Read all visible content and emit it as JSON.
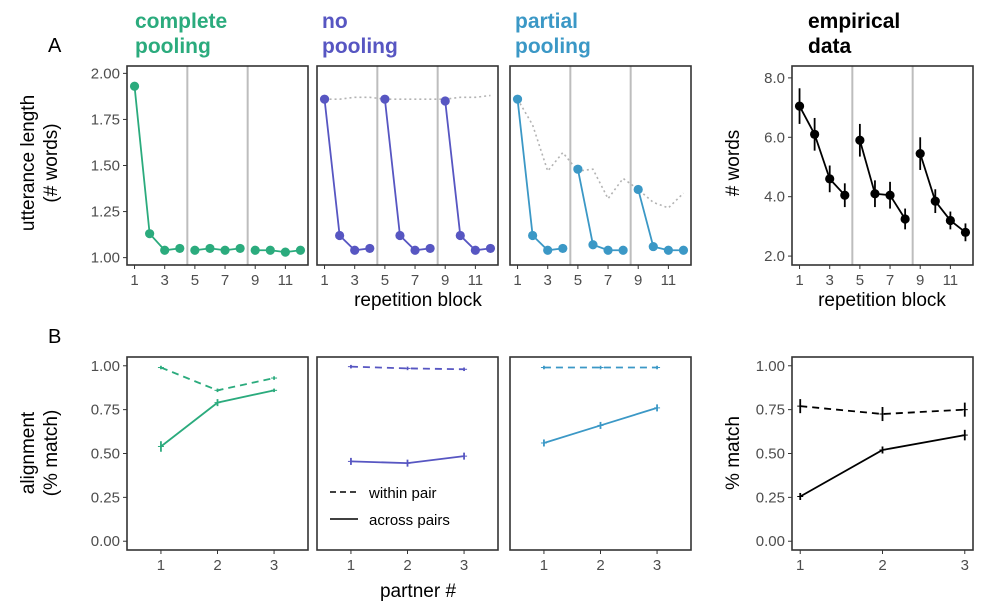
{
  "panel_labels": {
    "A": "A",
    "B": "B"
  },
  "colors": {
    "complete": "#2bab7d",
    "none": "#5756c2",
    "partial": "#3b98c6",
    "empirical": "#000000",
    "vline": "#bdbdbd",
    "dotted": "#b3b3b3"
  },
  "titles": [
    {
      "line1": "complete",
      "line2": "pooling"
    },
    {
      "line1": "no",
      "line2": "pooling"
    },
    {
      "line1": "partial",
      "line2": "pooling"
    },
    {
      "line1": "empirical",
      "line2": "data"
    }
  ],
  "axis_labels": {
    "row_a_model_ylabel_1": "utterance length",
    "row_a_model_ylabel_2": "(# words)",
    "row_a_emp_ylabel": "# words",
    "row_a_xlabel_model": "repetition block",
    "row_a_xlabel_emp": "repetition block",
    "row_b_model_ylabel_1": "alignment",
    "row_b_model_ylabel_2": "(% match)",
    "row_b_emp_ylabel": "% match",
    "row_b_xlabel_model": "partner #",
    "row_b_xlabel_emp": "partner #"
  },
  "legend": {
    "within": "within pair",
    "across": "across pairs"
  },
  "chart_data": [
    {
      "id": "A_complete",
      "type": "line",
      "title": "complete pooling",
      "x": [
        1,
        2,
        3,
        4,
        5,
        6,
        7,
        8,
        9,
        10,
        11,
        12
      ],
      "xticks": [
        "1",
        "3",
        "5",
        "7",
        "9",
        "11"
      ],
      "yticks": [
        "1.00",
        "1.25",
        "1.50",
        "1.75",
        "2.00"
      ],
      "ylim": [
        0.96,
        2.04
      ],
      "xlim": [
        0.5,
        12.5
      ],
      "partner_boundaries": [
        4.5,
        8.5
      ],
      "ylabel": "utterance length (# words)",
      "xlabel": "repetition block",
      "series": [
        {
          "values": [
            1.93,
            1.13,
            1.04,
            1.05,
            1.04,
            1.05,
            1.04,
            1.05,
            1.04,
            1.04,
            1.03,
            1.04
          ]
        }
      ]
    },
    {
      "id": "A_none",
      "type": "line",
      "title": "no pooling",
      "x": [
        1,
        2,
        3,
        4,
        5,
        6,
        7,
        8,
        9,
        10,
        11,
        12
      ],
      "xticks": [
        "1",
        "3",
        "5",
        "7",
        "9",
        "11"
      ],
      "yticks": [
        "1.00",
        "1.25",
        "1.50",
        "1.75",
        "2.00"
      ],
      "ylim": [
        0.96,
        2.04
      ],
      "xlim": [
        0.5,
        12.5
      ],
      "partner_boundaries": [
        4.5,
        8.5
      ],
      "xlabel": "repetition block",
      "series": [
        {
          "values": [
            1.86,
            1.12,
            1.04,
            1.05,
            1.86,
            1.12,
            1.04,
            1.05,
            1.85,
            1.12,
            1.04,
            1.05
          ]
        }
      ],
      "reference": [
        1.86,
        1.86,
        1.87,
        1.87,
        1.86,
        1.86,
        1.86,
        1.86,
        1.86,
        1.87,
        1.87,
        1.88
      ]
    },
    {
      "id": "A_partial",
      "type": "line",
      "title": "partial pooling",
      "x": [
        1,
        2,
        3,
        4,
        5,
        6,
        7,
        8,
        9,
        10,
        11,
        12
      ],
      "xticks": [
        "1",
        "3",
        "5",
        "7",
        "9",
        "11"
      ],
      "yticks": [
        "1.00",
        "1.25",
        "1.50",
        "1.75",
        "2.00"
      ],
      "ylim": [
        0.96,
        2.04
      ],
      "xlim": [
        0.5,
        12.5
      ],
      "partner_boundaries": [
        4.5,
        8.5
      ],
      "xlabel": "repetition block",
      "series": [
        {
          "values": [
            1.86,
            1.12,
            1.04,
            1.05,
            1.48,
            1.07,
            1.04,
            1.04,
            1.37,
            1.06,
            1.04,
            1.04
          ]
        }
      ],
      "reference": [
        1.86,
        1.72,
        1.47,
        1.57,
        1.47,
        1.48,
        1.32,
        1.43,
        1.37,
        1.3,
        1.27,
        1.35
      ]
    },
    {
      "id": "A_empirical",
      "type": "line",
      "title": "empirical data",
      "x": [
        1,
        2,
        3,
        4,
        5,
        6,
        7,
        8,
        9,
        10,
        11,
        12
      ],
      "xticks": [
        "1",
        "3",
        "5",
        "7",
        "9",
        "11"
      ],
      "yticks": [
        "2.0",
        "4.0",
        "6.0",
        "8.0"
      ],
      "ylim": [
        1.7,
        8.4
      ],
      "xlim": [
        0.5,
        12.5
      ],
      "partner_boundaries": [
        4.5,
        8.5
      ],
      "ylabel": "# words",
      "xlabel": "repetition block",
      "series": [
        {
          "values": [
            7.05,
            6.1,
            4.6,
            4.05,
            5.9,
            4.1,
            4.05,
            3.25,
            5.45,
            3.85,
            3.2,
            2.8
          ],
          "error": [
            0.6,
            0.55,
            0.45,
            0.4,
            0.55,
            0.45,
            0.45,
            0.35,
            0.55,
            0.4,
            0.3,
            0.3
          ]
        }
      ]
    },
    {
      "id": "B_complete",
      "type": "line",
      "x": [
        1,
        2,
        3
      ],
      "xticks": [
        "1",
        "2",
        "3"
      ],
      "yticks": [
        "0.00",
        "0.25",
        "0.50",
        "0.75",
        "1.00"
      ],
      "ylim": [
        -0.05,
        1.05
      ],
      "xlim": [
        0.4,
        3.6
      ],
      "ylabel": "alignment (% match)",
      "xlabel": "partner #",
      "series": [
        {
          "name": "within pair",
          "dash": true,
          "values": [
            0.99,
            0.86,
            0.93
          ],
          "error": [
            0.01,
            0.01,
            0.01
          ]
        },
        {
          "name": "across pairs",
          "dash": false,
          "values": [
            0.54,
            0.79,
            0.86
          ],
          "error": [
            0.03,
            0.02,
            0.01
          ]
        }
      ]
    },
    {
      "id": "B_none",
      "type": "line",
      "x": [
        1,
        2,
        3
      ],
      "xticks": [
        "1",
        "2",
        "3"
      ],
      "yticks": [
        "0.00",
        "0.25",
        "0.50",
        "0.75",
        "1.00"
      ],
      "ylim": [
        -0.05,
        1.05
      ],
      "xlim": [
        0.4,
        3.6
      ],
      "xlabel": "partner #",
      "series": [
        {
          "name": "within pair",
          "dash": true,
          "values": [
            0.995,
            0.985,
            0.98
          ],
          "error": [
            0.01,
            0.01,
            0.01
          ]
        },
        {
          "name": "across pairs",
          "dash": false,
          "values": [
            0.455,
            0.445,
            0.485
          ],
          "error": [
            0.02,
            0.02,
            0.02
          ]
        }
      ]
    },
    {
      "id": "B_partial",
      "type": "line",
      "x": [
        1,
        2,
        3
      ],
      "xticks": [
        "1",
        "2",
        "3"
      ],
      "yticks": [
        "0.00",
        "0.25",
        "0.50",
        "0.75",
        "1.00"
      ],
      "ylim": [
        -0.05,
        1.05
      ],
      "xlim": [
        0.4,
        3.6
      ],
      "xlabel": "partner #",
      "series": [
        {
          "name": "within pair",
          "dash": true,
          "values": [
            0.99,
            0.99,
            0.99
          ],
          "error": [
            0.01,
            0.01,
            0.01
          ]
        },
        {
          "name": "across pairs",
          "dash": false,
          "values": [
            0.56,
            0.66,
            0.76
          ],
          "error": [
            0.02,
            0.02,
            0.02
          ]
        }
      ]
    },
    {
      "id": "B_empirical",
      "type": "line",
      "x": [
        1,
        2,
        3
      ],
      "xticks": [
        "1",
        "2",
        "3"
      ],
      "yticks": [
        "0.00",
        "0.25",
        "0.50",
        "0.75",
        "1.00"
      ],
      "ylim": [
        -0.05,
        1.05
      ],
      "xlim": [
        0.9,
        3.1
      ],
      "ylabel": "% match",
      "xlabel": "partner #",
      "series": [
        {
          "name": "within pair",
          "dash": true,
          "values": [
            0.77,
            0.725,
            0.75
          ],
          "error": [
            0.04,
            0.04,
            0.04
          ]
        },
        {
          "name": "across pairs",
          "dash": false,
          "values": [
            0.255,
            0.52,
            0.605
          ],
          "error": [
            0.02,
            0.02,
            0.03
          ]
        }
      ]
    }
  ]
}
